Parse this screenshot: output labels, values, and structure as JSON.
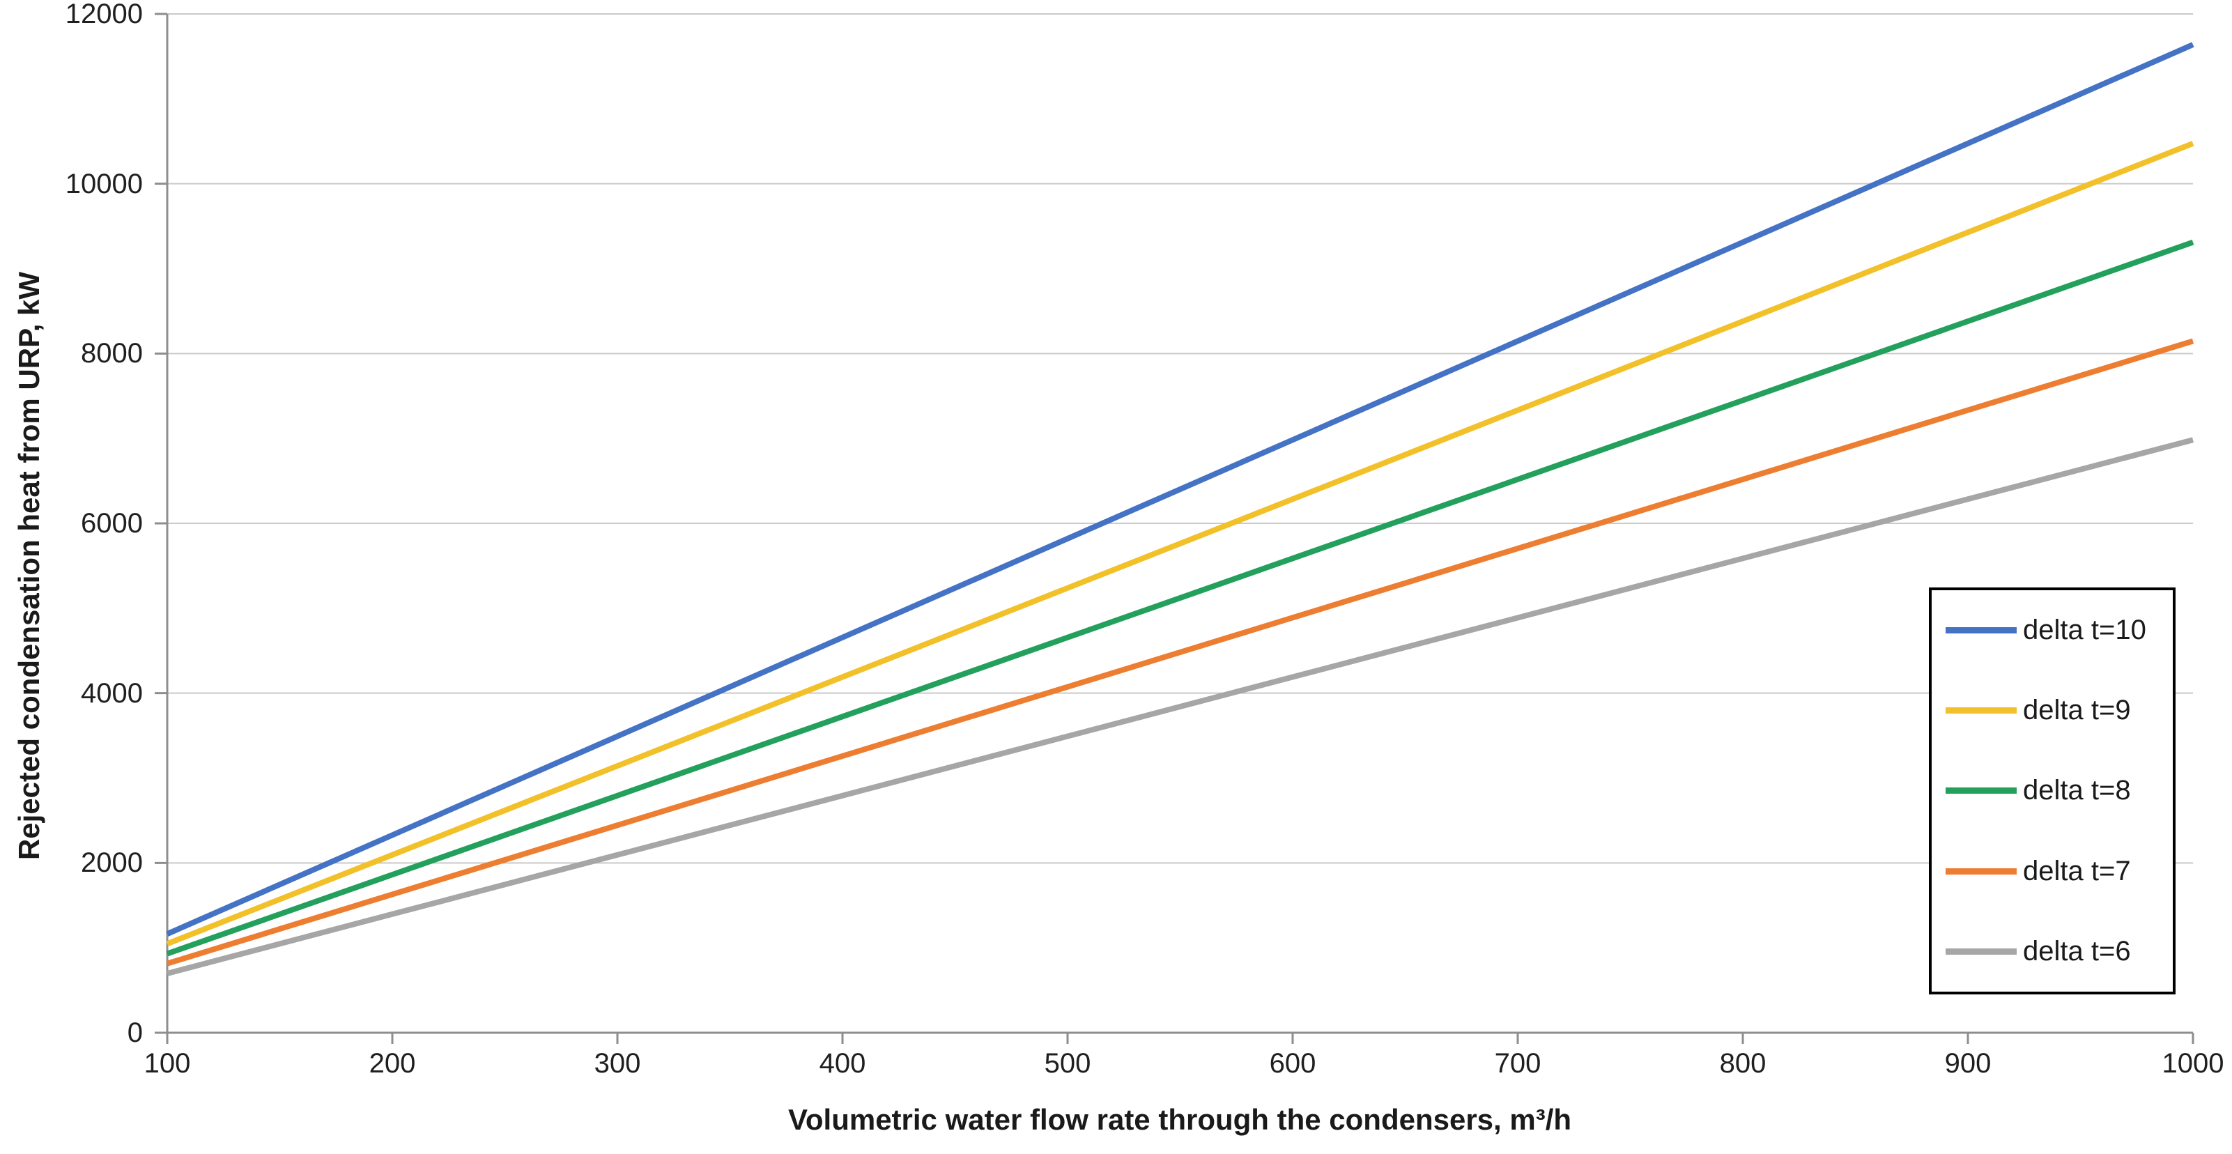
{
  "chart_data": {
    "type": "line",
    "title": "",
    "xlabel": "Volumetric water flow rate through the condensers, m³/h",
    "ylabel": "Rejected condensation heat from URP, kW",
    "x": [
      100,
      200,
      300,
      400,
      500,
      600,
      700,
      800,
      900,
      1000
    ],
    "series": [
      {
        "name": "delta t=10",
        "color": "#4472C4",
        "values": [
          1164,
          2328,
          3492,
          4656,
          5820,
          6983,
          8147,
          9311,
          10475,
          11639
        ]
      },
      {
        "name": "delta t=9",
        "color": "#F2C029",
        "values": [
          1048,
          2095,
          3143,
          4190,
          5238,
          6285,
          7333,
          8380,
          9428,
          10475
        ]
      },
      {
        "name": "delta t=8",
        "color": "#22A05C",
        "values": [
          931,
          1862,
          2793,
          3724,
          4656,
          5587,
          6518,
          7449,
          8380,
          9311
        ]
      },
      {
        "name": "delta t=7",
        "color": "#ED7D31",
        "values": [
          815,
          1630,
          2444,
          3259,
          4074,
          4889,
          5704,
          6518,
          7333,
          8147
        ]
      },
      {
        "name": "delta t=6",
        "color": "#A6A6A6",
        "values": [
          698,
          1397,
          2095,
          2793,
          3492,
          4190,
          4888,
          5587,
          6285,
          6983
        ]
      }
    ],
    "xlim": [
      100,
      1000
    ],
    "ylim": [
      0,
      12000
    ],
    "x_ticks": [
      100,
      200,
      300,
      400,
      500,
      600,
      700,
      800,
      900,
      1000
    ],
    "y_ticks": [
      0,
      2000,
      4000,
      6000,
      8000,
      10000,
      12000
    ],
    "grid": "horizontal-major",
    "legend_position": "inside-right",
    "legend_labels": [
      "delta t=10",
      "delta t=9",
      "delta t=8",
      "delta t=7",
      "delta t=6"
    ]
  },
  "colors": {
    "background": "#FFFFFF",
    "gridline": "#C9C9C9",
    "axis": "#8E8E8E",
    "text": "#1A1A1A",
    "legend_border": "#000000",
    "legend_background": "#FFFFFF"
  }
}
